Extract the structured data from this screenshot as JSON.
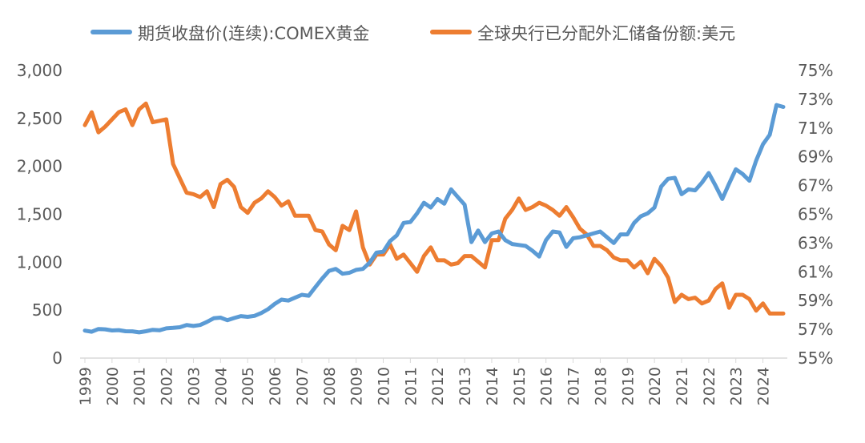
{
  "chart_data": {
    "type": "line",
    "title": "",
    "xlabel": "",
    "ylabel": "",
    "y2label": "",
    "x_ticks": [
      "1999",
      "2000",
      "2001",
      "2002",
      "2003",
      "2004",
      "2005",
      "2006",
      "2007",
      "2008",
      "2009",
      "2010",
      "2011",
      "2012",
      "2013",
      "2014",
      "2015",
      "2016",
      "2017",
      "2018",
      "2019",
      "2020",
      "2021",
      "2022",
      "2023",
      "2024"
    ],
    "y_left": {
      "min": 0,
      "max": 3000,
      "ticks": [
        "0",
        "500",
        "1,000",
        "1,500",
        "2,000",
        "2,500",
        "3,000"
      ]
    },
    "y_right": {
      "min": 55,
      "max": 75,
      "ticks": [
        "55%",
        "57%",
        "59%",
        "61%",
        "63%",
        "65%",
        "67%",
        "69%",
        "71%",
        "73%",
        "75%"
      ]
    },
    "grid": false,
    "legend_position": "top",
    "series": [
      {
        "name": "期货收盘价(连续):COMEX黄金",
        "axis": "left",
        "color": "#5b9bd5",
        "x": [
          1999.0,
          1999.25,
          1999.5,
          1999.75,
          2000.0,
          2000.25,
          2000.5,
          2000.75,
          2001.0,
          2001.25,
          2001.5,
          2001.75,
          2002.0,
          2002.25,
          2002.5,
          2002.75,
          2003.0,
          2003.25,
          2003.5,
          2003.75,
          2004.0,
          2004.25,
          2004.5,
          2004.75,
          2005.0,
          2005.25,
          2005.5,
          2005.75,
          2006.0,
          2006.25,
          2006.5,
          2006.75,
          2007.0,
          2007.25,
          2007.5,
          2007.75,
          2008.0,
          2008.25,
          2008.5,
          2008.75,
          2009.0,
          2009.25,
          2009.5,
          2009.75,
          2010.0,
          2010.25,
          2010.5,
          2010.75,
          2011.0,
          2011.25,
          2011.5,
          2011.75,
          2012.0,
          2012.25,
          2012.5,
          2012.75,
          2013.0,
          2013.25,
          2013.5,
          2013.75,
          2014.0,
          2014.25,
          2014.5,
          2014.75,
          2015.0,
          2015.25,
          2015.5,
          2015.75,
          2016.0,
          2016.25,
          2016.5,
          2016.75,
          2017.0,
          2017.25,
          2017.5,
          2017.75,
          2018.0,
          2018.25,
          2018.5,
          2018.75,
          2019.0,
          2019.25,
          2019.5,
          2019.75,
          2020.0,
          2020.25,
          2020.5,
          2020.75,
          2021.0,
          2021.25,
          2021.5,
          2021.75,
          2022.0,
          2022.25,
          2022.5,
          2022.75,
          2023.0,
          2023.25,
          2023.5,
          2023.75,
          2024.0,
          2024.25,
          2024.5,
          2024.75
        ],
        "values": [
          287,
          275,
          303,
          300,
          288,
          292,
          280,
          279,
          268,
          280,
          295,
          290,
          310,
          315,
          322,
          345,
          335,
          345,
          378,
          415,
          422,
          395,
          418,
          438,
          430,
          440,
          470,
          510,
          565,
          610,
          600,
          630,
          660,
          650,
          740,
          830,
          910,
          930,
          880,
          890,
          920,
          930,
          995,
          1100,
          1110,
          1220,
          1280,
          1410,
          1420,
          1510,
          1620,
          1570,
          1660,
          1610,
          1760,
          1680,
          1600,
          1210,
          1330,
          1210,
          1300,
          1320,
          1230,
          1190,
          1180,
          1170,
          1120,
          1060,
          1230,
          1320,
          1310,
          1160,
          1250,
          1260,
          1280,
          1300,
          1320,
          1260,
          1200,
          1290,
          1290,
          1410,
          1480,
          1510,
          1570,
          1790,
          1870,
          1880,
          1710,
          1760,
          1750,
          1830,
          1930,
          1800,
          1660,
          1820,
          1970,
          1920,
          1850,
          2060,
          2230,
          2330,
          2640,
          2620
        ]
      },
      {
        "name": "全球央行已分配外汇储备份额:美元",
        "axis": "right",
        "color": "#ed7d31",
        "x": [
          1999.0,
          1999.25,
          1999.5,
          1999.75,
          2000.0,
          2000.25,
          2000.5,
          2000.75,
          2001.0,
          2001.25,
          2001.5,
          2001.75,
          2002.0,
          2002.25,
          2002.5,
          2002.75,
          2003.0,
          2003.25,
          2003.5,
          2003.75,
          2004.0,
          2004.25,
          2004.5,
          2004.75,
          2005.0,
          2005.25,
          2005.5,
          2005.75,
          2006.0,
          2006.25,
          2006.5,
          2006.75,
          2007.0,
          2007.25,
          2007.5,
          2007.75,
          2008.0,
          2008.25,
          2008.5,
          2008.75,
          2009.0,
          2009.25,
          2009.5,
          2009.75,
          2010.0,
          2010.25,
          2010.5,
          2010.75,
          2011.0,
          2011.25,
          2011.5,
          2011.75,
          2012.0,
          2012.25,
          2012.5,
          2012.75,
          2013.0,
          2013.25,
          2013.5,
          2013.75,
          2014.0,
          2014.25,
          2014.5,
          2014.75,
          2015.0,
          2015.25,
          2015.5,
          2015.75,
          2016.0,
          2016.25,
          2016.5,
          2016.75,
          2017.0,
          2017.25,
          2017.5,
          2017.75,
          2018.0,
          2018.25,
          2018.5,
          2018.75,
          2019.0,
          2019.25,
          2019.5,
          2019.75,
          2020.0,
          2020.25,
          2020.5,
          2020.75,
          2021.0,
          2021.25,
          2021.5,
          2021.75,
          2022.0,
          2022.25,
          2022.5,
          2022.75,
          2023.0,
          2023.25,
          2023.5,
          2023.75,
          2024.0,
          2024.25,
          2024.5,
          2024.75
        ],
        "values": [
          71.2,
          72.1,
          70.7,
          71.1,
          71.6,
          72.1,
          72.3,
          71.2,
          72.3,
          72.7,
          71.4,
          71.5,
          71.6,
          68.5,
          67.5,
          66.5,
          66.4,
          66.2,
          66.6,
          65.5,
          67.1,
          67.4,
          66.9,
          65.5,
          65.1,
          65.8,
          66.1,
          66.6,
          66.2,
          65.6,
          65.9,
          64.9,
          64.9,
          64.9,
          63.9,
          63.8,
          62.9,
          62.5,
          64.2,
          63.9,
          65.2,
          62.7,
          61.5,
          62.2,
          62.2,
          62.9,
          61.9,
          62.2,
          61.6,
          61.0,
          62.1,
          62.7,
          61.8,
          61.8,
          61.5,
          61.6,
          62.1,
          62.1,
          61.7,
          61.3,
          63.2,
          63.2,
          64.7,
          65.3,
          66.1,
          65.3,
          65.5,
          65.8,
          65.6,
          65.3,
          64.9,
          65.5,
          64.8,
          64.0,
          63.6,
          62.8,
          62.8,
          62.5,
          62.0,
          61.8,
          61.8,
          61.3,
          61.7,
          60.9,
          61.9,
          61.4,
          60.6,
          58.9,
          59.4,
          59.1,
          59.2,
          58.8,
          59.0,
          59.8,
          60.2,
          58.5,
          59.4,
          59.4,
          59.1,
          58.3,
          58.8,
          58.1,
          58.1,
          58.1
        ]
      }
    ]
  }
}
